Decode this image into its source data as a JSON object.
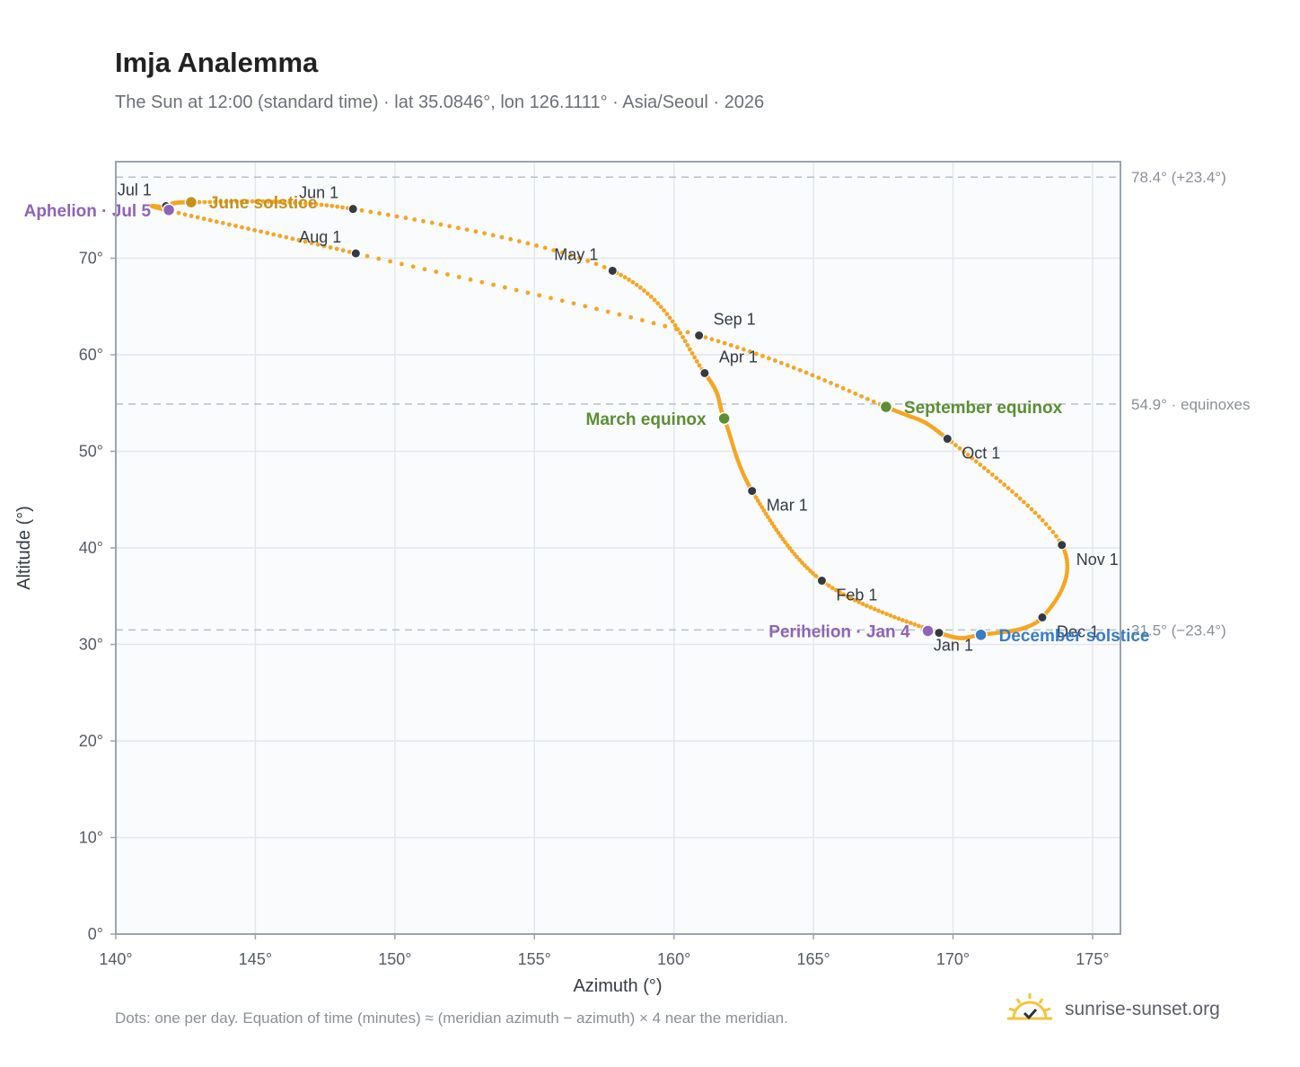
{
  "header": {
    "title": "Imja Analemma",
    "subtitle": "The Sun at 12:00 (standard time) · lat 35.0846°, lon 126.1111° · Asia/Seoul · 2026"
  },
  "footer": {
    "note": "Dots: one per day. Equation of time (minutes) ≈ (meridian azimuth − azimuth) × 4 near the meridian.",
    "brand": "sunrise-sunset.org"
  },
  "colors": {
    "path": "#f5a623",
    "month_dot": "#333a44",
    "june_solstice": "#c8911a",
    "december_solstice": "#3a7cc4",
    "equinox": "#5a8f34",
    "apsis": "#8e64b8",
    "grid": "#e3e7ee",
    "plot_bg": "#f9fbfd",
    "axis": "#9aa3b0",
    "refline": "#b8bfca"
  },
  "chart_data": {
    "type": "scatter",
    "title": "Imja Analemma",
    "xlabel": "Azimuth (°)",
    "ylabel": "Altitude (°)",
    "xlim": [
      140,
      176
    ],
    "ylim": [
      0,
      80
    ],
    "xticks": [
      140,
      145,
      150,
      155,
      160,
      165,
      170,
      175
    ],
    "yticks": [
      0,
      10,
      20,
      30,
      40,
      50,
      60,
      70
    ],
    "tick_suffix": "°",
    "grid": true,
    "reference_lines": [
      {
        "y": 78.4,
        "label": "78.4° (+23.4°)"
      },
      {
        "y": 54.9,
        "label": "54.9° · equinoxes"
      },
      {
        "y": 31.5,
        "label": "31.5° (−23.4°)"
      }
    ],
    "path_anchors": [
      {
        "x": 169.5,
        "y": 31.2
      },
      {
        "x": 165.3,
        "y": 36.6
      },
      {
        "x": 162.8,
        "y": 45.9
      },
      {
        "x": 161.8,
        "y": 53.4
      },
      {
        "x": 161.1,
        "y": 58.1
      },
      {
        "x": 157.8,
        "y": 68.7
      },
      {
        "x": 148.5,
        "y": 75.1
      },
      {
        "x": 142.8,
        "y": 75.8
      },
      {
        "x": 141.9,
        "y": 75.3
      },
      {
        "x": 141.8,
        "y": 75.0
      },
      {
        "x": 148.6,
        "y": 70.5
      },
      {
        "x": 160.9,
        "y": 62.0
      },
      {
        "x": 167.6,
        "y": 54.6
      },
      {
        "x": 169.8,
        "y": 51.3
      },
      {
        "x": 173.9,
        "y": 40.3
      },
      {
        "x": 173.2,
        "y": 32.8
      },
      {
        "x": 171.0,
        "y": 31.0
      },
      {
        "x": 169.5,
        "y": 31.2
      }
    ],
    "month_markers": [
      {
        "label": "Jan 1",
        "x": 169.5,
        "y": 31.2,
        "anchor": "below"
      },
      {
        "label": "Feb 1",
        "x": 165.3,
        "y": 36.6,
        "anchor": "below-right"
      },
      {
        "label": "Mar 1",
        "x": 162.8,
        "y": 45.9,
        "anchor": "below-right"
      },
      {
        "label": "Apr 1",
        "x": 161.1,
        "y": 58.1,
        "anchor": "above-right"
      },
      {
        "label": "May 1",
        "x": 157.8,
        "y": 68.7,
        "anchor": "above-left"
      },
      {
        "label": "Jun 1",
        "x": 148.5,
        "y": 75.1,
        "anchor": "above-left"
      },
      {
        "label": "Jul 1",
        "x": 141.8,
        "y": 75.4,
        "anchor": "above-left"
      },
      {
        "label": "Aug 1",
        "x": 148.6,
        "y": 70.5,
        "anchor": "above-left"
      },
      {
        "label": "Sep 1",
        "x": 160.9,
        "y": 62.0,
        "anchor": "above-right"
      },
      {
        "label": "Oct 1",
        "x": 169.8,
        "y": 51.3,
        "anchor": "below-right"
      },
      {
        "label": "Nov 1",
        "x": 173.9,
        "y": 40.3,
        "anchor": "below-right"
      },
      {
        "label": "Dec 1",
        "x": 173.2,
        "y": 32.8,
        "anchor": "below-right"
      }
    ],
    "events": [
      {
        "label": "June solstice",
        "x": 142.7,
        "y": 75.8,
        "color_key": "june_solstice",
        "side": "right"
      },
      {
        "label": "Aphelion · Jul 5",
        "x": 141.9,
        "y": 75.0,
        "color_key": "apsis",
        "side": "left"
      },
      {
        "label": "March equinox",
        "x": 161.8,
        "y": 53.4,
        "color_key": "equinox",
        "side": "left"
      },
      {
        "label": "September equinox",
        "x": 167.6,
        "y": 54.6,
        "color_key": "equinox",
        "side": "right"
      },
      {
        "label": "Perihelion · Jan 4",
        "x": 169.1,
        "y": 31.4,
        "color_key": "apsis",
        "side": "left"
      },
      {
        "label": "December solstice",
        "x": 171.0,
        "y": 31.0,
        "color_key": "december_solstice",
        "side": "right"
      }
    ]
  }
}
